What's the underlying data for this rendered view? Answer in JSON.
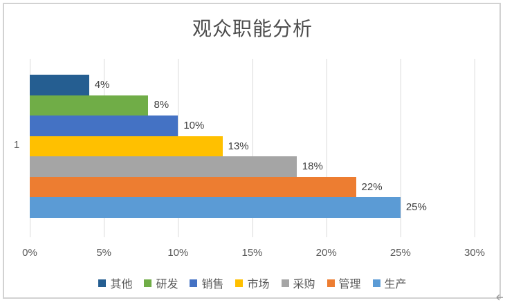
{
  "chart_data": {
    "type": "bar",
    "orientation": "horizontal",
    "title": "观众职能分析",
    "category_axis_label": "1",
    "categories": [
      "1"
    ],
    "series": [
      {
        "name": "其他",
        "value": 4,
        "label": "4%",
        "color": "#255E91"
      },
      {
        "name": "研发",
        "value": 8,
        "label": "8%",
        "color": "#70AD47"
      },
      {
        "name": "销售",
        "value": 10,
        "label": "10%",
        "color": "#4472C4"
      },
      {
        "name": "市场",
        "value": 13,
        "label": "13%",
        "color": "#FFC000"
      },
      {
        "name": "采购",
        "value": 18,
        "label": "18%",
        "color": "#A5A5A5"
      },
      {
        "name": "管理",
        "value": 22,
        "label": "22%",
        "color": "#ED7D31"
      },
      {
        "name": "生产",
        "value": 25,
        "label": "25%",
        "color": "#5B9BD5"
      }
    ],
    "x_ticks": [
      "0%",
      "5%",
      "10%",
      "15%",
      "20%",
      "25%",
      "30%"
    ],
    "x_tick_values": [
      0,
      5,
      10,
      15,
      20,
      25,
      30
    ],
    "x_range": [
      0,
      30
    ],
    "grid": true,
    "legend_position": "bottom",
    "legend": [
      "其他",
      "研发",
      "销售",
      "市场",
      "采购",
      "管理",
      "生产"
    ]
  },
  "colors": {
    "gridline": "#D9D9D9",
    "axis_text": "#595959",
    "title_text": "#4D4D4D",
    "data_label_text": "#404040",
    "chart_border": "#D2D2D2",
    "cursor": "#9A9A9A"
  }
}
